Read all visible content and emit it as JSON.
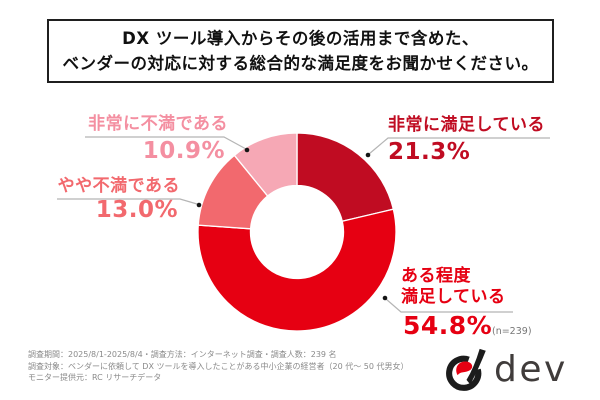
{
  "title": {
    "line1": "DX ツール導入からその後の活用まで含めた、",
    "line2": "ベンダーの対応に対する総合的な満足度をお聞かせください。"
  },
  "chart_data": {
    "type": "pie",
    "subtype": "donut",
    "title": "ベンダーの対応に対する総合的な満足度",
    "categories": [
      "非常に満足している",
      "ある程度満足している",
      "やや不満である",
      "非常に不満である"
    ],
    "values": [
      21.3,
      54.8,
      13.0,
      10.9
    ],
    "unit": "%",
    "colors": [
      "#c00c22",
      "#e60012",
      "#f2696e",
      "#f6a8b5"
    ],
    "start_angle": "top",
    "direction": "clockwise",
    "inner_radius_ratio": 0.47,
    "sample_size": 239
  },
  "labels": {
    "very_satisfied": {
      "text": "非常に満足している",
      "value": "21.3%",
      "color": "#c00c22"
    },
    "somewhat_satisfied": {
      "line1": "ある程度",
      "line2": "満足している",
      "value": "54.8%",
      "color": "#e60012"
    },
    "somewhat_dissatisfied": {
      "text": "やや不満である",
      "value": "13.0%",
      "color": "#f2696e"
    },
    "very_dissatisfied": {
      "text": "非常に不満である",
      "value": "10.9%",
      "color": "#f48fa1"
    }
  },
  "sample_note": "(n=239)",
  "footer": {
    "line1": "調査期間：2025/8/1-2025/8/4・調査方法：インターネット調査・調査人数：239 名",
    "line2": "調査対象：ベンダーに依頼して DX ツールを導入したことがある中小企業の経営者（20 代〜 50 代男女）",
    "line3": "モニター提供元：RC リサーチデータ"
  },
  "logo": {
    "text": "dev"
  }
}
